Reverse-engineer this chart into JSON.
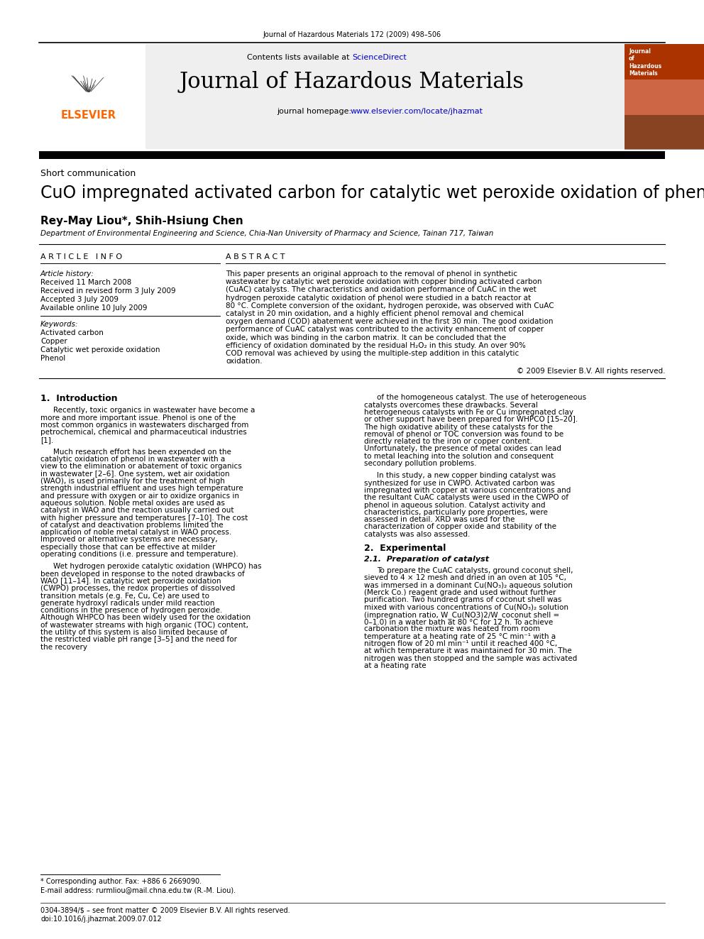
{
  "journal_citation": "Journal of Hazardous Materials 172 (2009) 498–506",
  "journal_name": "Journal of Hazardous Materials",
  "contents_line_before": "Contents lists available at ",
  "contents_line_link": "ScienceDirect",
  "sciencedirect_color": "#0000CC",
  "homepage_before": "journal homepage: ",
  "homepage_link": "www.elsevier.com/locate/jhazmat",
  "homepage_color": "#0000CC",
  "section_type": "Short communication",
  "title": "CuO impregnated activated carbon for catalytic wet peroxide oxidation of phenol",
  "authors": "Rey-May Liou*, Shih-Hsiung Chen",
  "affiliation": "Department of Environmental Engineering and Science, Chia-Nan University of Pharmacy and Science, Tainan 717, Taiwan",
  "article_info_header": "A R T I C L E   I N F O",
  "abstract_header": "A B S T R A C T",
  "article_history_label": "Article history:",
  "received": "Received 11 March 2008",
  "received_revised": "Received in revised form 3 July 2009",
  "accepted": "Accepted 3 July 2009",
  "available": "Available online 10 July 2009",
  "keywords_label": "Keywords:",
  "keywords": [
    "Activated carbon",
    "Copper",
    "Catalytic wet peroxide oxidation",
    "Phenol"
  ],
  "abstract_text": "This paper presents an original approach to the removal of phenol in synthetic wastewater by catalytic wet peroxide oxidation with copper binding activated carbon (CuAC) catalysts. The characteristics and oxidation performance of CuAC in the wet hydrogen peroxide catalytic oxidation of phenol were studied in a batch reactor at 80 °C. Complete conversion of the oxidant, hydrogen peroxide, was observed with CuAC catalyst in 20 min oxidation, and a highly efficient phenol removal and chemical oxygen demand (COD) abatement were achieved in the first 30 min. The good oxidation performance of CuAC catalyst was contributed to the activity enhancement of copper oxide, which was binding in the carbon matrix. It can be concluded that the efficiency of oxidation dominated by the residual H₂O₂ in this study. An over 90% COD removal was achieved by using the multiple-step addition in this catalytic oxidation.",
  "copyright": "© 2009 Elsevier B.V. All rights reserved.",
  "section1_title": "1.  Introduction",
  "intro_col1_p1": "Recently, toxic organics in wastewater have become a more and more important issue. Phenol is one of the most common organics in wastewaters discharged from petrochemical, chemical and pharmaceutical industries [1].",
  "intro_col1_p2": "Much research effort has been expended on the catalytic oxidation of phenol in wastewater with a view to the elimination or abatement of toxic organics in wastewater [2–6]. One system, wet air oxidation (WAO), is used primarily for the treatment of high strength industrial effluent and uses high temperature and pressure with oxygen or air to oxidize organics in aqueous solution. Noble metal oxides are used as catalyst in WAO and the reaction usually carried out with higher pressure and temperatures [7–10]. The cost of catalyst and deactivation problems limited the application of noble metal catalyst in WAO process. Improved or alternative systems are necessary, especially those that can be effective at milder operating conditions (i.e. pressure and temperature).",
  "intro_col1_p3": "Wet hydrogen peroxide catalytic oxidation (WHPCO) has been developed in response to the noted drawbacks of WAO [11–14]. In catalytic wet peroxide oxidation (CWPO) processes, the redox properties of dissolved transition metals (e.g. Fe, Cu, Ce) are used to generate hydroxyl radicals under mild reaction conditions in the presence of hydrogen peroxide. Although WHPCO has been widely used for the oxidation of wastewater streams with high organic (TOC) content, the utility of this system is also limited because of the restricted viable pH range [3–5] and the need for the recovery",
  "intro_col2_p1": "of the homogeneous catalyst. The use of heterogeneous catalysts overcomes these drawbacks. Several heterogeneous catalysts with Fe or Cu impregnated clay or other support have been prepared for WHPCO [15–20]. The high oxidative ability of these catalysts for the removal of phenol or TOC conversion was found to be directly related to the iron or copper content. Unfortunately, the presence of metal oxides can lead to metal leaching into the solution and consequent secondary pollution problems.",
  "intro_col2_p2": "In this study, a new copper binding catalyst was synthesized for use in CWPO. Activated carbon was impregnated with copper at various concentrations and the resultant CuAC catalysts were used in the CWPO of phenol in aqueous solution. Catalyst activity and characteristics, particularly pore properties, were assessed in detail. XRD was used for the characterization of copper oxide and stability of the catalysts was also assessed.",
  "section2_title": "2.  Experimental",
  "section21_title": "2.1.  Preparation of catalyst",
  "section21_text": "To prepare the CuAC catalysts, ground coconut shell, sieved to 4 × 12 mesh and dried in an oven at 105 °C, was immersed in a dominant Cu(NO₃)₂ aqueous solution (Merck Co.) reagent grade and used without further purification. Two hundred grams of coconut shell was mixed with various concentrations of Cu(NO₃)₂ solution (impregnation ratio, W_Cu(NO3)2/W_coconut shell = 0–1.0) in a water bath at 80 °C for 12 h. To achieve carbonation the mixture was heated from room temperature at a heating rate of 25 °C min⁻¹ with a nitrogen flow of 20 ml min⁻¹ until it reached 400 °C, at which temperature it was maintained for 30 min. The nitrogen was then stopped and the sample was activated at a heating rate",
  "footnote_star": "* Corresponding author. Fax: +886 6 2669090.",
  "footnote_email": "E-mail address: rurmliou@mail.chna.edu.tw (R.-M. Liou).",
  "footer_text": "0304-3894/$ – see front matter © 2009 Elsevier B.V. All rights reserved.",
  "footer_doi": "doi:10.1016/j.jhazmat.2009.07.012",
  "header_bg": "#efefef",
  "elsevier_orange": "#FF6600",
  "body_font_size": 7.5,
  "small_font_size": 6.5
}
